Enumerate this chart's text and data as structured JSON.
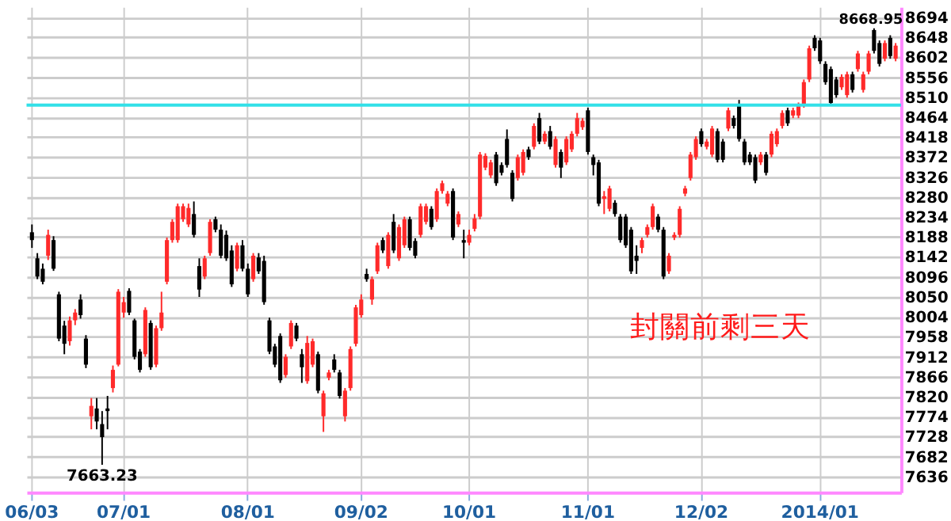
{
  "chart_data": {
    "type": "candlestick",
    "categories": [
      "06/03",
      null,
      null,
      null,
      null,
      null,
      null,
      null,
      null,
      null,
      null,
      null,
      null,
      null,
      null,
      null,
      null,
      "07/01",
      null,
      null,
      null,
      null,
      null,
      null,
      null,
      null,
      null,
      null,
      null,
      null,
      null,
      null,
      null,
      null,
      null,
      null,
      null,
      null,
      null,
      null,
      "08/01",
      null,
      null,
      null,
      null,
      null,
      null,
      null,
      null,
      null,
      null,
      null,
      null,
      null,
      null,
      null,
      null,
      null,
      null,
      null,
      null,
      "09/02",
      null,
      null,
      null,
      null,
      null,
      null,
      null,
      null,
      null,
      null,
      null,
      null,
      null,
      null,
      null,
      null,
      null,
      null,
      null,
      "10/01",
      null,
      null,
      null,
      null,
      null,
      null,
      null,
      null,
      null,
      null,
      null,
      null,
      null,
      null,
      null,
      null,
      null,
      null,
      null,
      null,
      null,
      "11/01",
      null,
      null,
      null,
      null,
      null,
      null,
      null,
      null,
      null,
      null,
      null,
      null,
      null,
      null,
      null,
      null,
      null,
      null,
      null,
      null,
      "12/02",
      null,
      null,
      null,
      null,
      null,
      null,
      null,
      null,
      null,
      null,
      null,
      null,
      null,
      null,
      null,
      null,
      null,
      null,
      null,
      null,
      null,
      "2014/01",
      null,
      null,
      null,
      null,
      null,
      null,
      null,
      null,
      null,
      null,
      null,
      null,
      null,
      null
    ],
    "ohlc": [
      [
        8199,
        8217,
        8163,
        8181
      ],
      [
        8139,
        8151,
        8091,
        8097
      ],
      [
        8115,
        8127,
        8079,
        8085
      ],
      [
        8145,
        8205,
        8135,
        8193
      ],
      [
        8181,
        8190,
        8110,
        8115
      ],
      [
        8056,
        8062,
        7948,
        7954
      ],
      [
        7984,
        7995,
        7918,
        7942
      ],
      [
        7948,
        8005,
        7938,
        7996
      ],
      [
        7996,
        8022,
        7985,
        8014
      ],
      [
        8044,
        8056,
        8000,
        8008
      ],
      [
        7954,
        7962,
        7886,
        7894
      ],
      [
        7775,
        7817,
        7745,
        7799
      ],
      [
        7793,
        7817,
        7745,
        7763
      ],
      [
        7757,
        7787,
        7663.23,
        7727
      ],
      [
        7793,
        7822,
        7745,
        7787
      ],
      [
        7840,
        7892,
        7830,
        7882
      ],
      [
        7894,
        8068,
        7890,
        8062
      ],
      [
        8014,
        8050,
        8002,
        8038
      ],
      [
        8064,
        8070,
        8008,
        8014
      ],
      [
        7996,
        8000,
        7906,
        7912
      ],
      [
        7924,
        7930,
        7876,
        7882
      ],
      [
        7918,
        8026,
        7912,
        8020
      ],
      [
        7990,
        7996,
        7882,
        7888
      ],
      [
        7894,
        7984,
        7888,
        7978
      ],
      [
        7978,
        8062,
        7972,
        8014
      ],
      [
        8085,
        8187,
        8079,
        8181
      ],
      [
        8181,
        8229,
        8175,
        8223
      ],
      [
        8181,
        8265,
        8175,
        8259
      ],
      [
        8229,
        8265,
        8223,
        8259
      ],
      [
        8217,
        8265,
        8211,
        8255
      ],
      [
        8241,
        8270,
        8187,
        8193
      ],
      [
        8121,
        8139,
        8050,
        8067
      ],
      [
        8097,
        8145,
        8091,
        8139
      ],
      [
        8151,
        8229,
        8145,
        8223
      ],
      [
        8229,
        8235,
        8199,
        8205
      ],
      [
        8205,
        8217,
        8139,
        8145
      ],
      [
        8193,
        8203,
        8133,
        8139
      ],
      [
        8157,
        8169,
        8073,
        8079
      ],
      [
        8115,
        8175,
        8109,
        8169
      ],
      [
        8169,
        8181,
        8109,
        8115
      ],
      [
        8115,
        8127,
        8050,
        8056
      ],
      [
        8091,
        8151,
        8085,
        8145
      ],
      [
        8141,
        8151,
        8103,
        8109
      ],
      [
        8133,
        8145,
        8032,
        8038
      ],
      [
        7996,
        8002,
        7918,
        7924
      ],
      [
        7936,
        7942,
        7888,
        7894
      ],
      [
        7960,
        7966,
        7852,
        7858
      ],
      [
        7870,
        7918,
        7864,
        7912
      ],
      [
        7936,
        7996,
        7930,
        7990
      ],
      [
        7984,
        7990,
        7948,
        7954
      ],
      [
        7918,
        7930,
        7852,
        7888
      ],
      [
        7856,
        7960,
        7850,
        7944
      ],
      [
        7894,
        7954,
        7888,
        7948
      ],
      [
        7918,
        7924,
        7828,
        7834
      ],
      [
        7775,
        7834,
        7739,
        7828
      ],
      [
        7864,
        7882,
        7858,
        7876
      ],
      [
        7906,
        7918,
        7876,
        7882
      ],
      [
        7876,
        7882,
        7816,
        7822
      ],
      [
        7775,
        7840,
        7763,
        7834
      ],
      [
        7840,
        7936,
        7834,
        7930
      ],
      [
        7942,
        8032,
        7936,
        8026
      ],
      [
        8008,
        8056,
        8002,
        8044
      ],
      [
        8103,
        8115,
        8085,
        8091
      ],
      [
        8044,
        8097,
        8032,
        8091
      ],
      [
        8109,
        8175,
        8103,
        8169
      ],
      [
        8181,
        8187,
        8151,
        8157
      ],
      [
        8121,
        8199,
        8115,
        8193
      ],
      [
        8223,
        8241,
        8151,
        8157
      ],
      [
        8139,
        8217,
        8133,
        8211
      ],
      [
        8169,
        8235,
        8163,
        8229
      ],
      [
        8229,
        8235,
        8157,
        8163
      ],
      [
        8179,
        8185,
        8139,
        8145
      ],
      [
        8193,
        8265,
        8187,
        8259
      ],
      [
        8223,
        8265,
        8217,
        8259
      ],
      [
        8253,
        8259,
        8205,
        8211
      ],
      [
        8229,
        8300,
        8223,
        8294
      ],
      [
        8294,
        8318,
        8288,
        8312
      ],
      [
        8265,
        8294,
        8259,
        8288
      ],
      [
        8294,
        8300,
        8181,
        8187
      ],
      [
        8217,
        8247,
        8211,
        8241
      ],
      [
        8181,
        8205,
        8139,
        8175
      ],
      [
        8175,
        8205,
        8169,
        8193
      ],
      [
        8207,
        8241,
        8201,
        8231
      ],
      [
        8235,
        8384,
        8229,
        8378
      ],
      [
        8348,
        8381,
        8342,
        8375
      ],
      [
        8330,
        8366,
        8324,
        8360
      ],
      [
        8378,
        8384,
        8306,
        8312
      ],
      [
        8354,
        8360,
        8330,
        8336
      ],
      [
        8414,
        8436,
        8348,
        8354
      ],
      [
        8336,
        8342,
        8270,
        8276
      ],
      [
        8324,
        8378,
        8318,
        8372
      ],
      [
        8336,
        8390,
        8330,
        8384
      ],
      [
        8390,
        8396,
        8366,
        8372
      ],
      [
        8396,
        8450,
        8390,
        8444
      ],
      [
        8462,
        8474,
        8402,
        8408
      ],
      [
        8408,
        8432,
        8402,
        8426
      ],
      [
        8432,
        8444,
        8390,
        8396
      ],
      [
        8354,
        8420,
        8348,
        8414
      ],
      [
        8384,
        8390,
        8324,
        8348
      ],
      [
        8360,
        8420,
        8354,
        8414
      ],
      [
        8390,
        8432,
        8384,
        8426
      ],
      [
        8426,
        8474,
        8420,
        8462
      ],
      [
        8441,
        8462,
        8435,
        8456
      ],
      [
        8480,
        8486,
        8378,
        8384
      ],
      [
        8372,
        8378,
        8330,
        8354
      ],
      [
        8360,
        8366,
        8259,
        8265
      ],
      [
        8276,
        8294,
        8241,
        8282
      ],
      [
        8253,
        8306,
        8247,
        8300
      ],
      [
        8267,
        8273,
        8235,
        8241
      ],
      [
        8235,
        8241,
        8175,
        8181
      ],
      [
        8235,
        8241,
        8163,
        8169
      ],
      [
        8205,
        8211,
        8103,
        8109
      ],
      [
        8145,
        8169,
        8103,
        8133
      ],
      [
        8163,
        8187,
        8151,
        8181
      ],
      [
        8193,
        8217,
        8187,
        8211
      ],
      [
        8211,
        8265,
        8205,
        8259
      ],
      [
        8235,
        8241,
        8199,
        8205
      ],
      [
        8205,
        8211,
        8091,
        8097
      ],
      [
        8109,
        8151,
        8103,
        8145
      ],
      [
        8187,
        8199,
        8181,
        8193
      ],
      [
        8193,
        8259,
        8187,
        8253
      ],
      [
        8288,
        8306,
        8282,
        8300
      ],
      [
        8324,
        8384,
        8318,
        8378
      ],
      [
        8372,
        8420,
        8366,
        8414
      ],
      [
        8432,
        8438,
        8396,
        8402
      ],
      [
        8396,
        8414,
        8390,
        8408
      ],
      [
        8378,
        8444,
        8372,
        8438
      ],
      [
        8432,
        8438,
        8360,
        8366
      ],
      [
        8408,
        8414,
        8360,
        8366
      ],
      [
        8438,
        8486,
        8432,
        8480
      ],
      [
        8462,
        8468,
        8438,
        8444
      ],
      [
        8492,
        8504,
        8408,
        8414
      ],
      [
        8408,
        8414,
        8354,
        8360
      ],
      [
        8378,
        8384,
        8354,
        8360
      ],
      [
        8372,
        8378,
        8312,
        8318
      ],
      [
        8360,
        8384,
        8354,
        8378
      ],
      [
        8378,
        8384,
        8330,
        8336
      ],
      [
        8378,
        8432,
        8372,
        8426
      ],
      [
        8402,
        8438,
        8396,
        8432
      ],
      [
        8444,
        8480,
        8438,
        8474
      ],
      [
        8480,
        8486,
        8444,
        8450
      ],
      [
        8468,
        8486,
        8462,
        8480
      ],
      [
        8468,
        8498,
        8462,
        8492
      ],
      [
        8492,
        8551,
        8486,
        8545
      ],
      [
        8551,
        8629,
        8545,
        8623
      ],
      [
        8647,
        8653,
        8617,
        8623
      ],
      [
        8641,
        8647,
        8587,
        8593
      ],
      [
        8587,
        8593,
        8539,
        8545
      ],
      [
        8575,
        8581,
        8492,
        8497
      ],
      [
        8551,
        8557,
        8509,
        8515
      ],
      [
        8533,
        8563,
        8527,
        8557
      ],
      [
        8515,
        8569,
        8509,
        8563
      ],
      [
        8563,
        8569,
        8521,
        8527
      ],
      [
        8575,
        8617,
        8569,
        8611
      ],
      [
        8527,
        8569,
        8521,
        8563
      ],
      [
        8569,
        8617,
        8563,
        8611
      ],
      [
        8665,
        8668.95,
        8611,
        8617
      ],
      [
        8635,
        8641,
        8581,
        8587
      ],
      [
        8599,
        8641,
        8593,
        8635
      ],
      [
        8647,
        8653,
        8599,
        8605
      ],
      [
        8599,
        8635,
        8593,
        8629
      ]
    ],
    "colors": [
      "#000000",
      "#000000",
      "#000000",
      "#ff2a2a",
      "#000000",
      "#000000",
      "#000000",
      "#ff2a2a",
      "#ff2a2a",
      "#000000",
      "#000000",
      "#ff2a2a",
      "#000000",
      "#000000",
      "#000000",
      "#ff2a2a",
      "#ff2a2a",
      "#ff2a2a",
      "#000000",
      "#000000",
      "#000000",
      "#ff2a2a",
      "#000000",
      "#ff2a2a",
      "#ff2a2a",
      "#ff2a2a",
      "#ff2a2a",
      "#ff2a2a",
      "#ff2a2a",
      "#ff2a2a",
      "#000000",
      "#000000",
      "#ff2a2a",
      "#ff2a2a",
      "#000000",
      "#000000",
      "#000000",
      "#000000",
      "#ff2a2a",
      "#000000",
      "#000000",
      "#ff2a2a",
      "#000000",
      "#000000",
      "#000000",
      "#000000",
      "#000000",
      "#ff2a2a",
      "#ff2a2a",
      "#000000",
      "#000000",
      "#ff2a2a",
      "#ff2a2a",
      "#000000",
      "#ff2a2a",
      "#ff2a2a",
      "#000000",
      "#000000",
      "#ff2a2a",
      "#ff2a2a",
      "#ff2a2a",
      "#ff2a2a",
      "#000000",
      "#ff2a2a",
      "#ff2a2a",
      "#000000",
      "#ff2a2a",
      "#000000",
      "#ff2a2a",
      "#ff2a2a",
      "#000000",
      "#000000",
      "#ff2a2a",
      "#ff2a2a",
      "#000000",
      "#ff2a2a",
      "#ff2a2a",
      "#ff2a2a",
      "#000000",
      "#ff2a2a",
      "#000000",
      "#ff2a2a",
      "#ff2a2a",
      "#ff2a2a",
      "#ff2a2a",
      "#ff2a2a",
      "#000000",
      "#000000",
      "#000000",
      "#000000",
      "#ff2a2a",
      "#ff2a2a",
      "#000000",
      "#ff2a2a",
      "#000000",
      "#ff2a2a",
      "#000000",
      "#ff2a2a",
      "#000000",
      "#ff2a2a",
      "#ff2a2a",
      "#ff2a2a",
      "#ff2a2a",
      "#000000",
      "#000000",
      "#000000",
      "#ff2a2a",
      "#ff2a2a",
      "#000000",
      "#000000",
      "#000000",
      "#000000",
      "#000000",
      "#ff2a2a",
      "#ff2a2a",
      "#ff2a2a",
      "#000000",
      "#000000",
      "#ff2a2a",
      "#ff2a2a",
      "#ff2a2a",
      "#ff2a2a",
      "#ff2a2a",
      "#ff2a2a",
      "#000000",
      "#ff2a2a",
      "#ff2a2a",
      "#000000",
      "#000000",
      "#ff2a2a",
      "#000000",
      "#000000",
      "#000000",
      "#000000",
      "#000000",
      "#ff2a2a",
      "#000000",
      "#ff2a2a",
      "#ff2a2a",
      "#ff2a2a",
      "#000000",
      "#ff2a2a",
      "#ff2a2a",
      "#ff2a2a",
      "#ff2a2a",
      "#000000",
      "#000000",
      "#000000",
      "#000000",
      "#000000",
      "#ff2a2a",
      "#ff2a2a",
      "#000000",
      "#ff2a2a",
      "#ff2a2a",
      "#ff2a2a",
      "#000000",
      "#000000",
      "#ff2a2a",
      "#000000",
      "#ff2a2a"
    ],
    "ylim": [
      7600,
      8718
    ],
    "yticks": [
      7636,
      7682,
      7728,
      7774,
      7820,
      7866,
      7912,
      7958,
      8004,
      8050,
      8096,
      8142,
      8188,
      8234,
      8280,
      8326,
      8372,
      8418,
      8464,
      8510,
      8556,
      8602,
      8648,
      8694
    ],
    "grid": true,
    "ref_lines": [
      {
        "axis": "y",
        "value": 8492,
        "color": "#33e0e8"
      }
    ],
    "annotations": [
      {
        "text": "7663.23",
        "y": 7663.23
      },
      {
        "text": "8668.95",
        "y": 8668.95
      },
      "封關前剩三天"
    ]
  }
}
